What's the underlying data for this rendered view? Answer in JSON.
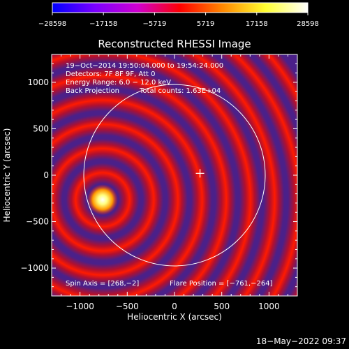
{
  "colorbar": {
    "ticks": [
      "-28598",
      "-17158",
      "-5719",
      "5719",
      "17158",
      "28598"
    ],
    "stops": [
      "#0000ff",
      "#7a00ff",
      "#d000d0",
      "#ff0000",
      "#ff8800",
      "#ffff30",
      "#ffffff"
    ]
  },
  "chart_data": {
    "type": "heatmap",
    "title": "Reconstructed RHESSI Image",
    "xlabel": "Heliocentric X (arcsec)",
    "ylabel": "Heliocentric Y (arcsec)",
    "xlim": [
      -1300,
      1300
    ],
    "ylim": [
      -1300,
      1300
    ],
    "x_ticks": [
      -1000,
      -500,
      0,
      500,
      1000
    ],
    "y_ticks": [
      -1000,
      -500,
      0,
      500,
      1000
    ],
    "x_tick_labels": [
      "−1000",
      "−500",
      "0",
      "500",
      "1000"
    ],
    "y_tick_labels": [
      "−1000",
      "−500",
      "0",
      "500",
      "1000"
    ],
    "color_range": [
      -28598,
      28598
    ],
    "solar_limb_radius_arcsec": 960,
    "solar_center": [
      0,
      0
    ],
    "flare_marker": [
      270,
      20
    ],
    "bright_source": [
      -761,
      -264
    ],
    "info_lines": [
      "19−Oct−2014 19:50:04.000 to 19:54:24.000",
      "Detectors: 7F 8F 9F, Att 0",
      "Energy Range: 6.0 − 12.0 keV"
    ],
    "method": "Back Projection",
    "total_counts": "Total counts: 1.63E+04",
    "spin_axis": "Spin Axis = [268,−2]",
    "flare_position": "Flare Position = [−761,−264]"
  },
  "timestamp": "18−May−2022 09:37"
}
